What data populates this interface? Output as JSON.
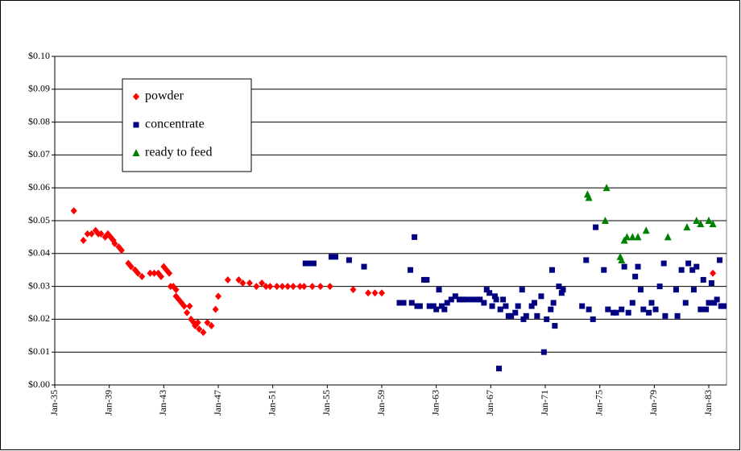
{
  "chart_data": {
    "type": "scatter",
    "xlim": [
      1935,
      1984.3
    ],
    "xticks": [
      {
        "value": 1935,
        "label": "Jan-35"
      },
      {
        "value": 1939,
        "label": "Jan-39"
      },
      {
        "value": 1943,
        "label": "Jan-43"
      },
      {
        "value": 1947,
        "label": "Jan-47"
      },
      {
        "value": 1951,
        "label": "Jan-51"
      },
      {
        "value": 1955,
        "label": "Jan-55"
      },
      {
        "value": 1959,
        "label": "Jan-59"
      },
      {
        "value": 1963,
        "label": "Jan-63"
      },
      {
        "value": 1967,
        "label": "Jan-67"
      },
      {
        "value": 1971,
        "label": "Jan-71"
      },
      {
        "value": 1975,
        "label": "Jan-75"
      },
      {
        "value": 1979,
        "label": "Jan-79"
      },
      {
        "value": 1983,
        "label": "Jan-83"
      }
    ],
    "ylim": [
      0,
      0.1
    ],
    "yticks": [
      {
        "value": 0,
        "label": "$0.00"
      },
      {
        "value": 0.01,
        "label": "$0.01"
      },
      {
        "value": 0.02,
        "label": "$0.02"
      },
      {
        "value": 0.03,
        "label": "$0.03"
      },
      {
        "value": 0.04,
        "label": "$0.04"
      },
      {
        "value": 0.05,
        "label": "$0.05"
      },
      {
        "value": 0.06,
        "label": "$0.06"
      },
      {
        "value": 0.07,
        "label": "$0.07"
      },
      {
        "value": 0.08,
        "label": "$0.08"
      },
      {
        "value": 0.09,
        "label": "$0.09"
      },
      {
        "value": 0.1,
        "label": "$0.10"
      }
    ],
    "grid": true,
    "legend": "upper left",
    "series": [
      {
        "name": "powder",
        "color": "#ff0000",
        "marker": "diamond",
        "x": [
          1936.4,
          1937.1,
          1937.4,
          1937.7,
          1938.0,
          1938.2,
          1938.4,
          1938.7,
          1938.9,
          1939.1,
          1939.3,
          1939.4,
          1939.7,
          1939.9,
          1940.4,
          1940.6,
          1940.9,
          1941.1,
          1941.4,
          1942.0,
          1942.3,
          1942.6,
          1942.8,
          1943.0,
          1943.2,
          1943.4,
          1943.5,
          1943.7,
          1943.9,
          1943.9,
          1944.1,
          1944.3,
          1944.5,
          1944.7,
          1944.9,
          1945.0,
          1945.2,
          1945.3,
          1945.5,
          1945.6,
          1945.9,
          1946.2,
          1946.5,
          1946.8,
          1947.0,
          1947.7,
          1948.5,
          1948.8,
          1949.3,
          1949.8,
          1950.2,
          1950.5,
          1950.8,
          1951.3,
          1951.7,
          1952.1,
          1952.5,
          1953.0,
          1953.3,
          1953.9,
          1954.5,
          1955.2,
          1956.9,
          1958.0,
          1958.5,
          1959.0,
          1983.3
        ],
        "values": [
          0.053,
          0.044,
          0.046,
          0.046,
          0.047,
          0.046,
          0.046,
          0.045,
          0.046,
          0.045,
          0.044,
          0.043,
          0.042,
          0.041,
          0.037,
          0.036,
          0.035,
          0.034,
          0.033,
          0.034,
          0.034,
          0.034,
          0.033,
          0.036,
          0.035,
          0.034,
          0.03,
          0.03,
          0.029,
          0.027,
          0.026,
          0.025,
          0.024,
          0.022,
          0.024,
          0.02,
          0.019,
          0.018,
          0.019,
          0.017,
          0.016,
          0.019,
          0.018,
          0.023,
          0.027,
          0.032,
          0.032,
          0.031,
          0.031,
          0.03,
          0.031,
          0.03,
          0.03,
          0.03,
          0.03,
          0.03,
          0.03,
          0.03,
          0.03,
          0.03,
          0.03,
          0.03,
          0.029,
          0.028,
          0.028,
          0.028,
          0.034
        ]
      },
      {
        "name": "concentrate",
        "color": "#000080",
        "marker": "square",
        "x": [
          1953.4,
          1953.7,
          1954.0,
          1955.3,
          1955.6,
          1956.6,
          1957.7,
          1960.3,
          1960.6,
          1961.1,
          1961.2,
          1961.4,
          1961.6,
          1961.8,
          1962.1,
          1962.3,
          1962.5,
          1962.8,
          1963.0,
          1963.2,
          1963.4,
          1963.6,
          1963.8,
          1964.1,
          1964.4,
          1964.7,
          1964.9,
          1965.2,
          1965.6,
          1966.0,
          1966.2,
          1966.5,
          1966.7,
          1966.9,
          1967.1,
          1967.3,
          1967.4,
          1967.6,
          1967.7,
          1967.9,
          1968.1,
          1968.3,
          1968.5,
          1968.8,
          1969.0,
          1969.3,
          1969.4,
          1969.6,
          1970.0,
          1970.2,
          1970.4,
          1970.7,
          1970.9,
          1971.1,
          1971.4,
          1971.5,
          1971.6,
          1971.7,
          1972.0,
          1972.2,
          1972.3,
          1973.7,
          1974.0,
          1974.2,
          1974.5,
          1974.7,
          1975.3,
          1975.6,
          1976.0,
          1976.2,
          1976.6,
          1976.8,
          1977.1,
          1977.4,
          1977.6,
          1977.8,
          1978.0,
          1978.2,
          1978.6,
          1978.8,
          1979.1,
          1979.4,
          1979.7,
          1979.8,
          1980.6,
          1980.7,
          1981.0,
          1981.3,
          1981.5,
          1981.8,
          1981.9,
          1982.1,
          1982.4,
          1982.6,
          1982.8,
          1983.0,
          1983.2,
          1983.4,
          1983.6,
          1983.8,
          1983.9,
          1984.1
        ],
        "values": [
          0.037,
          0.037,
          0.037,
          0.039,
          0.039,
          0.038,
          0.036,
          0.025,
          0.025,
          0.035,
          0.025,
          0.045,
          0.024,
          0.024,
          0.032,
          0.032,
          0.024,
          0.024,
          0.023,
          0.029,
          0.024,
          0.023,
          0.025,
          0.026,
          0.027,
          0.026,
          0.026,
          0.026,
          0.026,
          0.026,
          0.026,
          0.025,
          0.029,
          0.028,
          0.024,
          0.027,
          0.026,
          0.005,
          0.023,
          0.026,
          0.024,
          0.021,
          0.021,
          0.022,
          0.024,
          0.029,
          0.02,
          0.021,
          0.024,
          0.025,
          0.021,
          0.027,
          0.01,
          0.02,
          0.023,
          0.035,
          0.025,
          0.018,
          0.03,
          0.028,
          0.029,
          0.024,
          0.038,
          0.023,
          0.02,
          0.048,
          0.035,
          0.023,
          0.022,
          0.022,
          0.023,
          0.036,
          0.022,
          0.025,
          0.033,
          0.036,
          0.029,
          0.023,
          0.022,
          0.025,
          0.023,
          0.03,
          0.037,
          0.021,
          0.029,
          0.021,
          0.035,
          0.025,
          0.037,
          0.035,
          0.029,
          0.036,
          0.023,
          0.032,
          0.023,
          0.025,
          0.031,
          0.025,
          0.026,
          0.038,
          0.024,
          0.024
        ]
      },
      {
        "name": "ready to feed",
        "color": "#008000",
        "marker": "triangle",
        "x": [
          1974.1,
          1974.2,
          1975.4,
          1975.5,
          1976.5,
          1976.6,
          1976.8,
          1977.0,
          1977.4,
          1977.8,
          1978.4,
          1980.0,
          1981.4,
          1982.1,
          1982.4,
          1983.0,
          1983.3
        ],
        "values": [
          0.058,
          0.057,
          0.05,
          0.06,
          0.039,
          0.038,
          0.044,
          0.045,
          0.045,
          0.045,
          0.047,
          0.045,
          0.048,
          0.05,
          0.049,
          0.05,
          0.049
        ]
      }
    ]
  }
}
